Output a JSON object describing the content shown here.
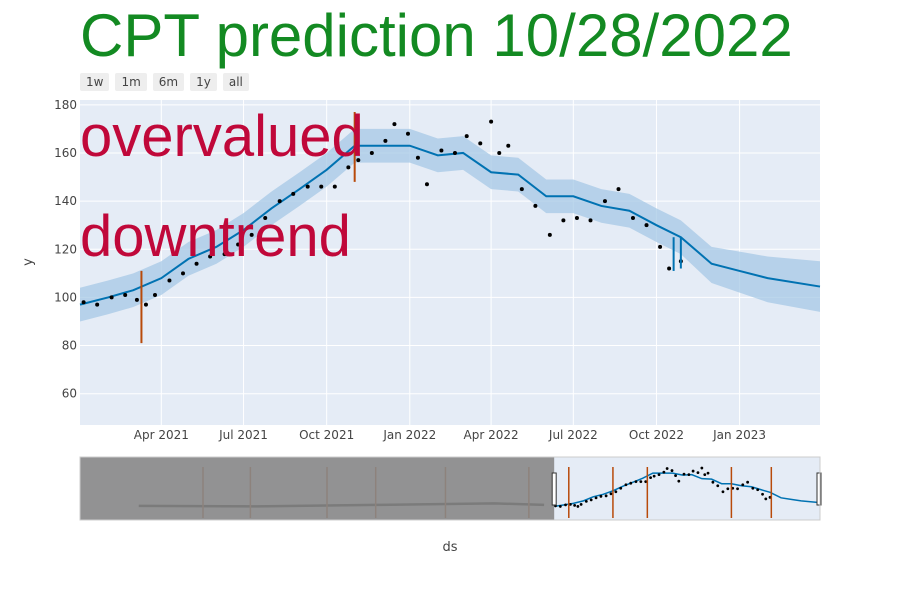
{
  "title": "CPT prediction 10/28/2022",
  "range_buttons": [
    "1w",
    "1m",
    "6m",
    "1y",
    "all"
  ],
  "annotations": [
    "overvalued",
    "downtrend"
  ],
  "colors": {
    "title": "#138a22",
    "annotation": "#c0083a",
    "plot_bg": "#e5ecf6",
    "forecast_line": "#0072b2",
    "uncertainty_band": "#a6c8e6",
    "observed_points": "#000000",
    "changepoint_marker": "#b84a0a",
    "range_mask": "#888888"
  },
  "chart_data": {
    "type": "line",
    "xlabel": "ds",
    "ylabel": "y",
    "x_ticks": [
      "Apr 2021",
      "Jul 2021",
      "Oct 2021",
      "Jan 2022",
      "Apr 2022",
      "Jul 2022",
      "Oct 2022",
      "Jan 2023"
    ],
    "y_ticks": [
      60,
      80,
      100,
      120,
      140,
      160,
      180
    ],
    "xlim": [
      "2021-01-01",
      "2023-03-31"
    ],
    "ylim": [
      47,
      182
    ],
    "grid": true,
    "series": [
      {
        "style": "line",
        "x": [
          "2021-01-01",
          "2021-02-01",
          "2021-03-01",
          "2021-04-01",
          "2021-05-01",
          "2021-06-01",
          "2021-07-01",
          "2021-08-01",
          "2021-09-01",
          "2021-10-01",
          "2021-11-01",
          "2021-12-01",
          "2022-01-01",
          "2022-02-01",
          "2022-03-01",
          "2022-04-01",
          "2022-05-01",
          "2022-06-01",
          "2022-07-01",
          "2022-08-01",
          "2022-09-01",
          "2022-10-01",
          "2022-10-28",
          "2022-12-01",
          "2023-01-01",
          "2023-02-01",
          "2023-03-31"
        ],
        "y": [
          97,
          100,
          103,
          108,
          116,
          121,
          128,
          137,
          145,
          153,
          163,
          163,
          163,
          159,
          160,
          152,
          151,
          142,
          142,
          138,
          136,
          130,
          125,
          114,
          111,
          108,
          104.5
        ]
      },
      {
        "style": "band",
        "x": [
          "2021-01-01",
          "2021-02-01",
          "2021-03-01",
          "2021-04-01",
          "2021-05-01",
          "2021-06-01",
          "2021-07-01",
          "2021-08-01",
          "2021-09-01",
          "2021-10-01",
          "2021-11-01",
          "2021-12-01",
          "2022-01-01",
          "2022-02-01",
          "2022-03-01",
          "2022-04-01",
          "2022-05-01",
          "2022-06-01",
          "2022-07-01",
          "2022-08-01",
          "2022-09-01",
          "2022-10-01",
          "2022-10-28",
          "2022-12-01",
          "2023-01-01",
          "2023-02-01",
          "2023-03-31"
        ],
        "lower": [
          90,
          93,
          96,
          101,
          109,
          114,
          121,
          130,
          138,
          146,
          156,
          156,
          156,
          152,
          153,
          145,
          144,
          135,
          135,
          131,
          129,
          123,
          118,
          106,
          102,
          98,
          94
        ],
        "upper": [
          104,
          107,
          110,
          115,
          123,
          128,
          135,
          144,
          152,
          160,
          170,
          170,
          170,
          166,
          167,
          159,
          158,
          149,
          149,
          145,
          143,
          137,
          132,
          121,
          119,
          117,
          115
        ]
      },
      {
        "style": "points",
        "x": [
          "2021-01-05",
          "2021-01-20",
          "2021-02-05",
          "2021-02-20",
          "2021-03-05",
          "2021-03-15",
          "2021-03-25",
          "2021-04-10",
          "2021-04-25",
          "2021-05-10",
          "2021-05-25",
          "2021-06-10",
          "2021-06-25",
          "2021-07-10",
          "2021-07-25",
          "2021-08-10",
          "2021-08-25",
          "2021-09-10",
          "2021-09-25",
          "2021-10-10",
          "2021-10-25",
          "2021-11-05",
          "2021-11-20",
          "2021-12-05",
          "2021-12-15",
          "2021-12-30",
          "2022-01-10",
          "2022-01-20",
          "2022-02-05",
          "2022-02-20",
          "2022-03-05",
          "2022-03-20",
          "2022-04-01",
          "2022-04-10",
          "2022-04-20",
          "2022-05-05",
          "2022-05-20",
          "2022-06-05",
          "2022-06-20",
          "2022-07-05",
          "2022-07-20",
          "2022-08-05",
          "2022-08-20",
          "2022-09-05",
          "2022-09-20",
          "2022-10-05",
          "2022-10-15",
          "2022-10-28"
        ],
        "y": [
          98,
          97,
          100,
          101,
          99,
          97,
          101,
          107,
          110,
          114,
          117,
          118,
          122,
          126,
          133,
          140,
          143,
          146,
          146,
          146,
          154,
          157,
          160,
          165,
          172,
          168,
          158,
          147,
          161,
          160,
          167,
          164,
          173,
          160,
          163,
          145,
          138,
          126,
          132,
          133,
          132,
          140,
          145,
          133,
          130,
          121,
          112,
          115
        ]
      }
    ],
    "changepoints": [
      {
        "x": "2021-03-10",
        "y_low": 81,
        "y_high": 111
      },
      {
        "x": "2021-11-01",
        "y_low": 148,
        "y_high": 177
      }
    ],
    "prediction_markers": [
      {
        "x": "2022-10-20",
        "y_low": 111,
        "y_high": 125
      },
      {
        "x": "2022-10-28",
        "y_low": 112,
        "y_high": 125
      }
    ],
    "range_slider": {
      "xlim": [
        "2017-01-01",
        "2023-03-31"
      ],
      "selected": [
        "2021-01-01",
        "2023-03-31"
      ],
      "changepoints": [
        "2018-01-15",
        "2018-06-10",
        "2019-02-01",
        "2019-07-01",
        "2020-02-01",
        "2020-10-15",
        "2021-02-15",
        "2021-07-01",
        "2021-10-15",
        "2022-07-01",
        "2022-11-01"
      ]
    }
  }
}
